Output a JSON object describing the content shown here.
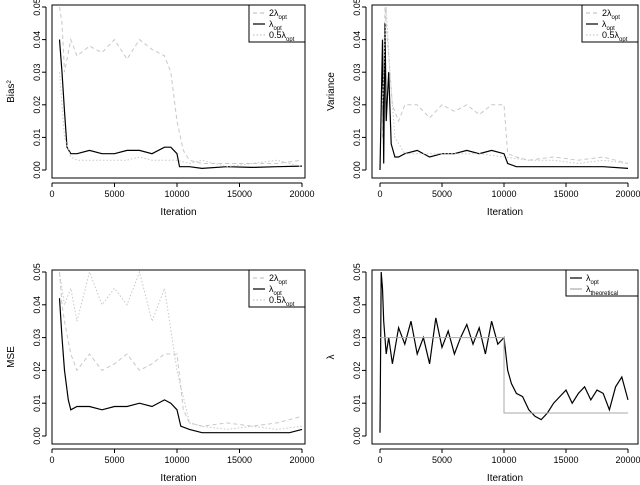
{
  "chart_data": [
    {
      "id": "bias",
      "type": "line",
      "ylabel": "Bias",
      "ylabel_sup": "2",
      "xlabel": "Iteration",
      "xlim": [
        0,
        20000
      ],
      "ylim": [
        0,
        0.05
      ],
      "xticks": [
        "0",
        "5000",
        "10000",
        "15000",
        "20000"
      ],
      "yticks": [
        "0.00",
        "0.01",
        "0.02",
        "0.03",
        "0.04",
        "0.05"
      ],
      "legend": [
        {
          "main": "2λ",
          "sub": "opt",
          "color": "#c8c8c8",
          "style": "dashed"
        },
        {
          "main": "λ",
          "sub": "opt",
          "color": "#000000",
          "style": "solid"
        },
        {
          "main": "0.5λ",
          "sub": "opt",
          "color": "#c8c8c8",
          "style": "dotted"
        }
      ],
      "series": [
        {
          "name": "2λ_opt",
          "color": "#c8c8c8",
          "x": [
            600,
            800,
            1000,
            1500,
            2000,
            3000,
            4000,
            5000,
            6000,
            7000,
            8000,
            9000,
            9500,
            10000,
            10500,
            11000,
            12000,
            14000,
            16000,
            18000,
            20000
          ],
          "y": [
            0.05,
            0.045,
            0.03,
            0.04,
            0.035,
            0.038,
            0.036,
            0.04,
            0.034,
            0.04,
            0.037,
            0.035,
            0.03,
            0.015,
            0.006,
            0.003,
            0.002,
            0.002,
            0.002,
            0.002,
            0.003
          ]
        },
        {
          "name": "λ_opt",
          "color": "#000000",
          "x": [
            600,
            800,
            1000,
            1200,
            1500,
            2000,
            3000,
            4000,
            5000,
            6000,
            7000,
            8000,
            9000,
            9500,
            10000,
            10200,
            11000,
            12000,
            14000,
            16000,
            18000,
            20000
          ],
          "y": [
            0.04,
            0.03,
            0.018,
            0.007,
            0.005,
            0.005,
            0.006,
            0.005,
            0.005,
            0.006,
            0.006,
            0.005,
            0.007,
            0.007,
            0.005,
            0.001,
            0.001,
            0.0005,
            0.001,
            0.0008,
            0.001,
            0.0012
          ]
        },
        {
          "name": "0.5λ_opt",
          "color": "#c8c8c8",
          "x": [
            600,
            1000,
            1500,
            2000,
            3000,
            4000,
            5000,
            6000,
            7000,
            8000,
            9000,
            10000,
            11000,
            12000,
            14000,
            16000,
            18000,
            20000
          ],
          "y": [
            0.03,
            0.01,
            0.004,
            0.003,
            0.003,
            0.003,
            0.003,
            0.003,
            0.004,
            0.003,
            0.003,
            0.003,
            0.002,
            0.003,
            0.001,
            0.002,
            0.003,
            0.001
          ]
        }
      ]
    },
    {
      "id": "variance",
      "type": "line",
      "ylabel": "Variance",
      "xlabel": "Iteration",
      "xlim": [
        0,
        20000
      ],
      "ylim": [
        0,
        0.05
      ],
      "xticks": [
        "0",
        "5000",
        "10000",
        "15000",
        "20000"
      ],
      "yticks": [
        "0.00",
        "0.01",
        "0.02",
        "0.03",
        "0.04",
        "0.05"
      ],
      "legend": [
        {
          "main": "2λ",
          "sub": "opt",
          "color": "#c8c8c8",
          "style": "dashed"
        },
        {
          "main": "λ",
          "sub": "opt",
          "color": "#000000",
          "style": "solid"
        },
        {
          "main": "0.5λ",
          "sub": "opt",
          "color": "#c8c8c8",
          "style": "dotted"
        }
      ],
      "series": [
        {
          "name": "2λ_opt",
          "color": "#c8c8c8",
          "x": [
            200,
            400,
            600,
            800,
            1000,
            1500,
            2000,
            3000,
            4000,
            5000,
            6000,
            7000,
            8000,
            9000,
            10000,
            10300,
            11000,
            12000,
            14000,
            16000,
            18000,
            20000
          ],
          "y": [
            0.01,
            0.05,
            0.04,
            0.03,
            0.02,
            0.015,
            0.02,
            0.02,
            0.016,
            0.02,
            0.018,
            0.02,
            0.017,
            0.02,
            0.02,
            0.005,
            0.004,
            0.003,
            0.004,
            0.003,
            0.004,
            0.002
          ]
        },
        {
          "name": "λ_opt",
          "color": "#000000",
          "x": [
            0,
            200,
            300,
            400,
            500,
            700,
            900,
            1200,
            1500,
            2000,
            3000,
            4000,
            5000,
            6000,
            7000,
            8000,
            9000,
            10000,
            10300,
            11000,
            12000,
            14000,
            16000,
            18000,
            20000
          ],
          "y": [
            0.0,
            0.04,
            0.002,
            0.045,
            0.015,
            0.03,
            0.008,
            0.004,
            0.004,
            0.005,
            0.006,
            0.004,
            0.005,
            0.005,
            0.006,
            0.005,
            0.006,
            0.005,
            0.002,
            0.001,
            0.001,
            0.001,
            0.001,
            0.001,
            0.0005
          ]
        },
        {
          "name": "0.5λ_opt",
          "color": "#c8c8c8",
          "x": [
            200,
            500,
            800,
            1200,
            2000,
            4000,
            6000,
            8000,
            10000,
            12000,
            14000,
            16000,
            18000,
            20000
          ],
          "y": [
            0.02,
            0.05,
            0.03,
            0.01,
            0.005,
            0.005,
            0.005,
            0.005,
            0.004,
            0.003,
            0.003,
            0.002,
            0.003,
            0.002
          ]
        }
      ]
    },
    {
      "id": "mse",
      "type": "line",
      "ylabel": "MSE",
      "xlabel": "Iteration",
      "xlim": [
        0,
        20000
      ],
      "ylim": [
        0,
        0.05
      ],
      "xticks": [
        "0",
        "5000",
        "10000",
        "15000",
        "20000"
      ],
      "yticks": [
        "0.00",
        "0.01",
        "0.02",
        "0.03",
        "0.04",
        "0.05"
      ],
      "legend": [
        {
          "main": "2λ",
          "sub": "opt",
          "color": "#c8c8c8",
          "style": "dashed"
        },
        {
          "main": "λ",
          "sub": "opt",
          "color": "#000000",
          "style": "solid"
        },
        {
          "main": "0.5λ",
          "sub": "opt",
          "color": "#c8c8c8",
          "style": "dotted"
        }
      ],
      "series": [
        {
          "name": "2λ_opt",
          "color": "#c8c8c8",
          "x": [
            600,
            800,
            1000,
            1500,
            2000,
            3000,
            4000,
            5000,
            6000,
            7000,
            8000,
            9000,
            10000,
            10500,
            11000,
            12000,
            14000,
            16000,
            18000,
            20000
          ],
          "y": [
            0.05,
            0.04,
            0.035,
            0.025,
            0.02,
            0.025,
            0.02,
            0.022,
            0.025,
            0.02,
            0.022,
            0.025,
            0.025,
            0.008,
            0.004,
            0.003,
            0.004,
            0.003,
            0.004,
            0.006
          ]
        },
        {
          "name": "λ_opt",
          "color": "#000000",
          "x": [
            600,
            800,
            1000,
            1300,
            1500,
            2000,
            3000,
            4000,
            5000,
            6000,
            7000,
            8000,
            9000,
            9500,
            10000,
            10300,
            11000,
            12000,
            14000,
            16000,
            18000,
            19000,
            20000
          ],
          "y": [
            0.042,
            0.03,
            0.02,
            0.011,
            0.008,
            0.009,
            0.009,
            0.008,
            0.009,
            0.009,
            0.01,
            0.009,
            0.011,
            0.01,
            0.008,
            0.003,
            0.002,
            0.001,
            0.001,
            0.001,
            0.001,
            0.001,
            0.002
          ]
        },
        {
          "name": "0.5λ_opt",
          "color": "#c8c8c8",
          "x": [
            600,
            1000,
            1500,
            2000,
            3000,
            4000,
            5000,
            6000,
            7000,
            8000,
            9000,
            10000,
            11000,
            12000,
            14000,
            16000,
            18000,
            20000
          ],
          "y": [
            0.05,
            0.04,
            0.045,
            0.035,
            0.05,
            0.04,
            0.045,
            0.04,
            0.05,
            0.035,
            0.045,
            0.02,
            0.004,
            0.003,
            0.002,
            0.003,
            0.002,
            0.003
          ]
        }
      ]
    },
    {
      "id": "lambda",
      "type": "line",
      "ylabel": "λ",
      "xlabel": "Iteration",
      "xlim": [
        0,
        20000
      ],
      "ylim": [
        0,
        0.05
      ],
      "xticks": [
        "0",
        "5000",
        "10000",
        "15000",
        "20000"
      ],
      "yticks": [
        "0.00",
        "0.01",
        "0.02",
        "0.03",
        "0.04",
        "0.05"
      ],
      "legend": [
        {
          "main": "λ",
          "sub": "opt",
          "color": "#000000",
          "style": "solid"
        },
        {
          "main": "λ",
          "sub": "theoretical",
          "color": "#aaaaaa",
          "style": "solid"
        }
      ],
      "series": [
        {
          "name": "λ_opt",
          "color": "#000000",
          "x": [
            0,
            100,
            200,
            300,
            500,
            700,
            1000,
            1500,
            2000,
            2500,
            3000,
            3500,
            4000,
            4500,
            5000,
            5500,
            6000,
            6500,
            7000,
            7500,
            8000,
            8500,
            9000,
            9500,
            10000,
            10300,
            10600,
            11000,
            11500,
            12000,
            12500,
            13000,
            13500,
            14000,
            14500,
            15000,
            15500,
            16000,
            16500,
            17000,
            17500,
            18000,
            18500,
            19000,
            19500,
            20000
          ],
          "y": [
            0.001,
            0.05,
            0.045,
            0.035,
            0.025,
            0.03,
            0.022,
            0.033,
            0.028,
            0.035,
            0.025,
            0.03,
            0.022,
            0.036,
            0.027,
            0.032,
            0.025,
            0.03,
            0.034,
            0.028,
            0.033,
            0.025,
            0.035,
            0.028,
            0.03,
            0.02,
            0.016,
            0.013,
            0.012,
            0.008,
            0.006,
            0.005,
            0.007,
            0.01,
            0.012,
            0.014,
            0.01,
            0.013,
            0.015,
            0.011,
            0.014,
            0.013,
            0.008,
            0.015,
            0.018,
            0.011
          ]
        },
        {
          "name": "λ_theoretical",
          "color": "#aaaaaa",
          "x": [
            0,
            10000,
            10000,
            20000
          ],
          "y": [
            0.03,
            0.03,
            0.007,
            0.007
          ]
        }
      ]
    }
  ]
}
